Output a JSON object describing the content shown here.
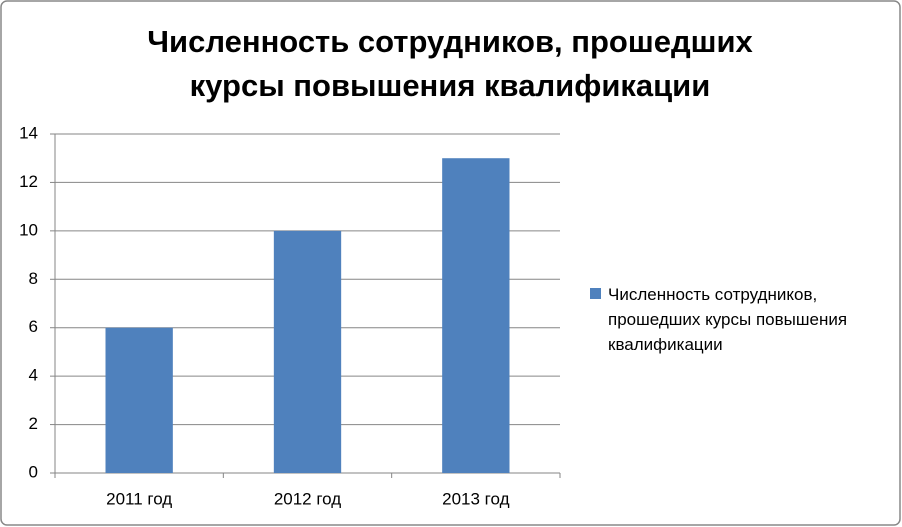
{
  "chart_data": {
    "type": "bar",
    "title": "Численность сотрудников, прошедших курсы повышения квалификации",
    "categories": [
      "2011 год",
      "2012 год",
      "2013 год"
    ],
    "series": [
      {
        "name": "Численность сотрудников, прошедших курсы повышения квалификации",
        "color": "#4f81bd",
        "values": [
          6,
          10,
          13
        ]
      }
    ],
    "ylim": [
      0,
      14
    ],
    "yticks": [
      0,
      2,
      4,
      6,
      8,
      10,
      12,
      14
    ],
    "grid": true,
    "legend": "right"
  }
}
